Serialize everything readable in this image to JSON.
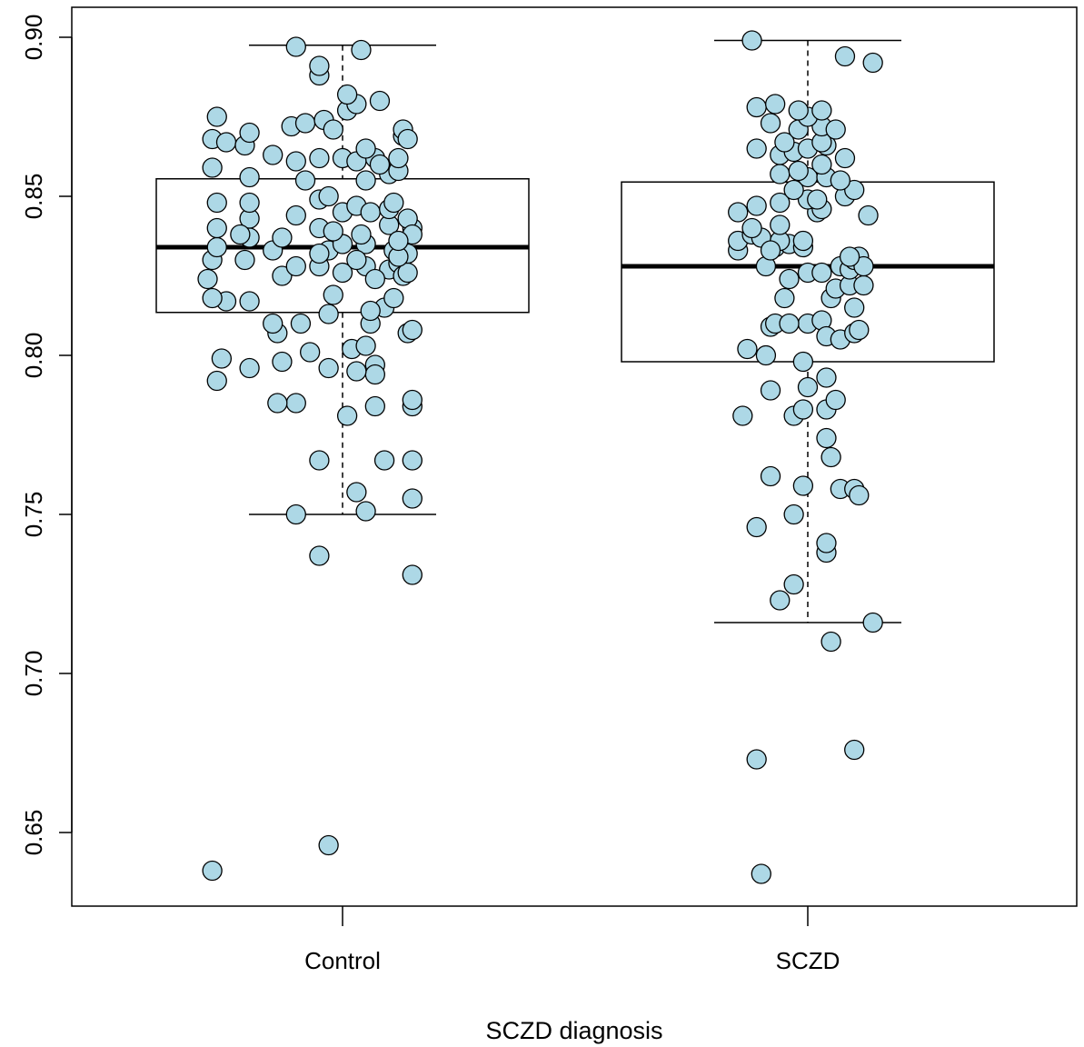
{
  "chart_data": {
    "type": "box",
    "title": "",
    "xlabel": "SCZD diagnosis",
    "ylabel": "",
    "ylim": [
      0.627,
      0.91
    ],
    "yticks": [
      0.65,
      0.7,
      0.75,
      0.8,
      0.85,
      0.9
    ],
    "ytick_labels": [
      "0.65",
      "0.70",
      "0.75",
      "0.80",
      "0.85",
      "0.90"
    ],
    "categories": [
      "Control",
      "SCZD"
    ],
    "point_color": "#add8e6",
    "boxes": [
      {
        "category": "Control",
        "whisker_low": 0.75,
        "q1": 0.8135,
        "median": 0.834,
        "q3": 0.8555,
        "whisker_high": 0.8975
      },
      {
        "category": "SCZD",
        "whisker_low": 0.716,
        "q1": 0.798,
        "median": 0.828,
        "q3": 0.8545,
        "whisker_high": 0.899
      }
    ],
    "series": [
      {
        "category": "Control",
        "points": [
          [
            -0.28,
            0.638
          ],
          [
            -0.03,
            0.646
          ],
          [
            -0.05,
            0.737
          ],
          [
            0.15,
            0.731
          ],
          [
            -0.1,
            0.75
          ],
          [
            0.05,
            0.751
          ],
          [
            0.03,
            0.757
          ],
          [
            0.15,
            0.755
          ],
          [
            -0.05,
            0.767
          ],
          [
            0.09,
            0.767
          ],
          [
            0.15,
            0.767
          ],
          [
            -0.1,
            0.785
          ],
          [
            -0.14,
            0.785
          ],
          [
            0.07,
            0.784
          ],
          [
            0.15,
            0.784
          ],
          [
            0.15,
            0.786
          ],
          [
            0.01,
            0.781
          ],
          [
            -0.27,
            0.792
          ],
          [
            -0.2,
            0.796
          ],
          [
            -0.07,
            0.801
          ],
          [
            -0.03,
            0.796
          ],
          [
            0.02,
            0.802
          ],
          [
            0.05,
            0.803
          ],
          [
            0.07,
            0.797
          ],
          [
            0.07,
            0.794
          ],
          [
            0.03,
            0.795
          ],
          [
            -0.13,
            0.798
          ],
          [
            -0.26,
            0.799
          ],
          [
            -0.14,
            0.807
          ],
          [
            -0.15,
            0.81
          ],
          [
            -0.09,
            0.81
          ],
          [
            0.06,
            0.81
          ],
          [
            0.14,
            0.807
          ],
          [
            0.15,
            0.808
          ],
          [
            -0.25,
            0.817
          ],
          [
            -0.28,
            0.818
          ],
          [
            -0.2,
            0.817
          ],
          [
            -0.02,
            0.819
          ],
          [
            0.09,
            0.815
          ],
          [
            0.11,
            0.818
          ],
          [
            -0.03,
            0.813
          ],
          [
            -0.29,
            0.824
          ],
          [
            -0.13,
            0.825
          ],
          [
            -0.05,
            0.828
          ],
          [
            0.0,
            0.826
          ],
          [
            0.1,
            0.827
          ],
          [
            0.12,
            0.829
          ],
          [
            0.13,
            0.825
          ],
          [
            0.14,
            0.826
          ],
          [
            0.05,
            0.828
          ],
          [
            0.07,
            0.824
          ],
          [
            -0.28,
            0.83
          ],
          [
            -0.21,
            0.83
          ],
          [
            -0.1,
            0.828
          ],
          [
            -0.03,
            0.833
          ],
          [
            0.0,
            0.835
          ],
          [
            0.05,
            0.835
          ],
          [
            0.11,
            0.833
          ],
          [
            0.14,
            0.832
          ],
          [
            0.12,
            0.831
          ],
          [
            -0.27,
            0.834
          ],
          [
            -0.15,
            0.833
          ],
          [
            0.04,
            0.838
          ],
          [
            0.15,
            0.84
          ],
          [
            -0.2,
            0.837
          ],
          [
            -0.13,
            0.837
          ],
          [
            -0.05,
            0.84
          ],
          [
            -0.02,
            0.839
          ],
          [
            0.1,
            0.841
          ],
          [
            -0.27,
            0.84
          ],
          [
            -0.2,
            0.843
          ],
          [
            -0.1,
            0.844
          ],
          [
            0.0,
            0.845
          ],
          [
            0.03,
            0.847
          ],
          [
            0.06,
            0.845
          ],
          [
            0.1,
            0.846
          ],
          [
            0.14,
            0.843
          ],
          [
            0.11,
            0.848
          ],
          [
            -0.27,
            0.848
          ],
          [
            -0.2,
            0.848
          ],
          [
            -0.05,
            0.849
          ],
          [
            -0.03,
            0.85
          ],
          [
            -0.2,
            0.856
          ],
          [
            -0.08,
            0.855
          ],
          [
            0.05,
            0.855
          ],
          [
            0.1,
            0.857
          ],
          [
            0.12,
            0.858
          ],
          [
            -0.28,
            0.859
          ],
          [
            -0.1,
            0.861
          ],
          [
            -0.05,
            0.862
          ],
          [
            0.0,
            0.862
          ],
          [
            0.07,
            0.862
          ],
          [
            0.12,
            0.862
          ],
          [
            0.08,
            0.86
          ],
          [
            0.03,
            0.861
          ],
          [
            -0.15,
            0.863
          ],
          [
            -0.28,
            0.868
          ],
          [
            -0.25,
            0.867
          ],
          [
            -0.21,
            0.866
          ],
          [
            -0.27,
            0.875
          ],
          [
            -0.2,
            0.87
          ],
          [
            -0.11,
            0.872
          ],
          [
            -0.08,
            0.873
          ],
          [
            -0.04,
            0.874
          ],
          [
            -0.02,
            0.871
          ],
          [
            0.05,
            0.865
          ],
          [
            0.13,
            0.869
          ],
          [
            0.13,
            0.871
          ],
          [
            0.14,
            0.868
          ],
          [
            0.01,
            0.877
          ],
          [
            0.03,
            0.879
          ],
          [
            0.08,
            0.88
          ],
          [
            0.01,
            0.882
          ],
          [
            -0.05,
            0.888
          ],
          [
            -0.05,
            0.891
          ],
          [
            0.04,
            0.896
          ],
          [
            -0.1,
            0.897
          ],
          [
            0.15,
            0.838
          ],
          [
            0.12,
            0.836
          ],
          [
            -0.05,
            0.832
          ],
          [
            0.06,
            0.814
          ],
          [
            -0.22,
            0.838
          ],
          [
            0.03,
            0.83
          ]
        ]
      },
      {
        "category": "SCZD",
        "points": [
          [
            -0.1,
            0.637
          ],
          [
            -0.11,
            0.673
          ],
          [
            0.1,
            0.676
          ],
          [
            0.05,
            0.71
          ],
          [
            0.14,
            0.716
          ],
          [
            -0.06,
            0.723
          ],
          [
            -0.03,
            0.728
          ],
          [
            0.04,
            0.738
          ],
          [
            0.04,
            0.741
          ],
          [
            -0.11,
            0.746
          ],
          [
            -0.03,
            0.75
          ],
          [
            -0.01,
            0.759
          ],
          [
            -0.08,
            0.762
          ],
          [
            0.07,
            0.758
          ],
          [
            0.1,
            0.758
          ],
          [
            0.11,
            0.756
          ],
          [
            0.04,
            0.774
          ],
          [
            0.05,
            0.768
          ],
          [
            -0.14,
            0.781
          ],
          [
            -0.03,
            0.781
          ],
          [
            -0.01,
            0.783
          ],
          [
            0.04,
            0.783
          ],
          [
            0.06,
            0.786
          ],
          [
            -0.08,
            0.789
          ],
          [
            0.0,
            0.79
          ],
          [
            0.04,
            0.793
          ],
          [
            -0.13,
            0.802
          ],
          [
            -0.09,
            0.8
          ],
          [
            -0.01,
            0.798
          ],
          [
            -0.08,
            0.809
          ],
          [
            -0.07,
            0.81
          ],
          [
            0.0,
            0.81
          ],
          [
            0.03,
            0.811
          ],
          [
            0.04,
            0.806
          ],
          [
            0.07,
            0.805
          ],
          [
            0.1,
            0.807
          ],
          [
            0.11,
            0.808
          ],
          [
            -0.05,
            0.818
          ],
          [
            0.05,
            0.818
          ],
          [
            0.06,
            0.821
          ],
          [
            0.09,
            0.822
          ],
          [
            0.12,
            0.822
          ],
          [
            0.1,
            0.815
          ],
          [
            -0.04,
            0.824
          ],
          [
            -0.09,
            0.828
          ],
          [
            0.0,
            0.826
          ],
          [
            0.03,
            0.826
          ],
          [
            0.07,
            0.828
          ],
          [
            0.09,
            0.827
          ],
          [
            0.1,
            0.83
          ],
          [
            0.11,
            0.831
          ],
          [
            0.12,
            0.828
          ],
          [
            -0.15,
            0.833
          ],
          [
            -0.07,
            0.834
          ],
          [
            -0.04,
            0.835
          ],
          [
            -0.01,
            0.834
          ],
          [
            0.09,
            0.831
          ],
          [
            -0.15,
            0.836
          ],
          [
            -0.12,
            0.838
          ],
          [
            -0.1,
            0.837
          ],
          [
            -0.06,
            0.836
          ],
          [
            -0.01,
            0.836
          ],
          [
            -0.12,
            0.84
          ],
          [
            -0.06,
            0.841
          ],
          [
            0.02,
            0.845
          ],
          [
            -0.15,
            0.845
          ],
          [
            -0.11,
            0.847
          ],
          [
            -0.06,
            0.848
          ],
          [
            0.0,
            0.849
          ],
          [
            0.03,
            0.846
          ],
          [
            0.08,
            0.85
          ],
          [
            0.1,
            0.852
          ],
          [
            0.13,
            0.844
          ],
          [
            -0.03,
            0.852
          ],
          [
            0.0,
            0.856
          ],
          [
            0.04,
            0.856
          ],
          [
            0.07,
            0.855
          ],
          [
            -0.06,
            0.857
          ],
          [
            -0.02,
            0.858
          ],
          [
            0.03,
            0.86
          ],
          [
            0.08,
            0.862
          ],
          [
            -0.11,
            0.865
          ],
          [
            -0.06,
            0.863
          ],
          [
            -0.03,
            0.864
          ],
          [
            0.0,
            0.865
          ],
          [
            0.04,
            0.866
          ],
          [
            -0.05,
            0.867
          ],
          [
            0.03,
            0.867
          ],
          [
            0.03,
            0.872
          ],
          [
            -0.08,
            0.873
          ],
          [
            -0.02,
            0.871
          ],
          [
            0.0,
            0.875
          ],
          [
            0.06,
            0.871
          ],
          [
            -0.11,
            0.878
          ],
          [
            -0.07,
            0.879
          ],
          [
            -0.02,
            0.877
          ],
          [
            0.03,
            0.877
          ],
          [
            0.08,
            0.894
          ],
          [
            0.14,
            0.892
          ],
          [
            -0.12,
            0.899
          ],
          [
            -0.08,
            0.833
          ],
          [
            0.02,
            0.849
          ],
          [
            -0.04,
            0.81
          ]
        ]
      }
    ]
  }
}
